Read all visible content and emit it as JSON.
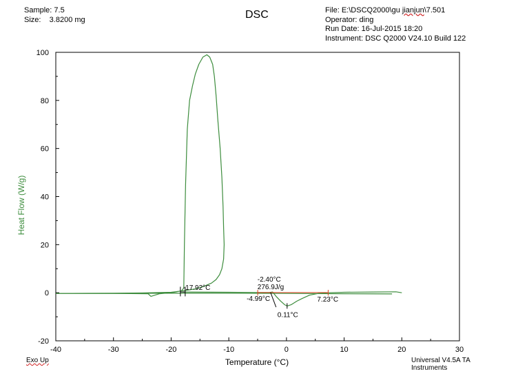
{
  "header": {
    "sample": "Sample: 7.5",
    "size": "Size:    3.8200 mg",
    "title": "DSC",
    "file_prefix": "File: E:\\DSCQ2000\\gu ",
    "file_underlined": "jianjun",
    "file_suffix": "\\7.501",
    "operator": "Operator: ding",
    "run_date": "Run Date: 16-Jul-2015 18:20",
    "instrument": "Instrument: DSC Q2000 V24.10  Build 122"
  },
  "footer": {
    "exo_up": "Exo Up",
    "software": "Universal V4.5A TA Instruments"
  },
  "colors": {
    "curve": "#3c8c3c",
    "axis_label": "#3c8c3c",
    "marker": "#e04020",
    "frame": "#000000"
  },
  "chart_data": {
    "type": "line",
    "title": "DSC",
    "xlabel": "Temperature (°C)",
    "ylabel": "Heat Flow (W/g)",
    "xlim": [
      -40,
      30
    ],
    "ylim": [
      -20,
      100
    ],
    "x_ticks": [
      -40,
      -30,
      -20,
      -10,
      0,
      10,
      20,
      30
    ],
    "x_tick_labels": [
      "-40",
      "-30",
      "-20",
      "-10",
      "0",
      "10",
      "20",
      "30"
    ],
    "y_ticks": [
      -20,
      0,
      20,
      40,
      60,
      80,
      100
    ],
    "y_tick_labels": [
      "-20",
      "0",
      "20",
      "40",
      "60",
      "80",
      "100"
    ],
    "grid": false,
    "series": [
      {
        "x": [
          -40,
          -30,
          -24,
          -23.5,
          -22,
          -19.5,
          -18.2,
          -17.8,
          -17.7,
          -17.5,
          -17.2,
          -16.8,
          -16.3,
          -15.8,
          -15.2,
          -14.5,
          -13.8,
          -13.3,
          -12.8,
          -12.5,
          -12.2,
          -11.9,
          -11.5,
          -11.2,
          -11.0,
          -10.9,
          -10.8,
          -10.9,
          -11.2,
          -11.6,
          -12.2,
          -13.0,
          -14.5,
          -16.0,
          -18.0,
          -20,
          -25,
          -30,
          -40
        ],
        "y": [
          -0.3,
          -0.3,
          -0.4,
          -1.5,
          -0.4,
          0.2,
          0.8,
          2,
          20,
          45,
          68,
          80,
          86,
          91,
          95,
          98,
          99,
          98,
          95,
          90,
          82,
          72,
          60,
          48,
          36,
          27,
          20,
          14,
          10,
          7.5,
          5.5,
          4.0,
          2.5,
          1.5,
          0.8,
          0.2,
          -0.1,
          -0.2,
          -0.3
        ]
      },
      {
        "x": [
          -18,
          -10,
          -5,
          -3,
          -2.4,
          -1.8,
          -1.0,
          -0.3,
          0.11,
          0.8,
          1.8,
          2.8,
          4.0,
          5.5,
          7.23,
          10,
          15,
          19,
          20
        ],
        "y": [
          0.3,
          0.2,
          0.1,
          0.1,
          0.3,
          -1.5,
          -3.5,
          -5.0,
          -5.5,
          -5.0,
          -3.5,
          -2.3,
          -1.0,
          -0.3,
          0.0,
          0.2,
          0.3,
          0.4,
          0.0
        ]
      },
      {
        "x": [
          -40,
          -30,
          -20,
          -10,
          0,
          10,
          18.3
        ],
        "y": [
          -0.3,
          -0.3,
          -0.2,
          -0.2,
          -0.3,
          -0.4,
          -0.5
        ]
      }
    ],
    "annotations": {
      "onset1": {
        "text": "-17.92°C",
        "x": -17.92
      },
      "peak2": {
        "text": "-2.40°C",
        "x": -2.4
      },
      "enthalpy": {
        "text": "276.9J/g"
      },
      "limit_left": {
        "text": "-4.99°C",
        "x": -4.99
      },
      "limit_right": {
        "text": "7.23°C",
        "x": 7.23
      },
      "min": {
        "text": "0.11°C",
        "x": 0.11,
        "y": -5.5
      }
    }
  }
}
